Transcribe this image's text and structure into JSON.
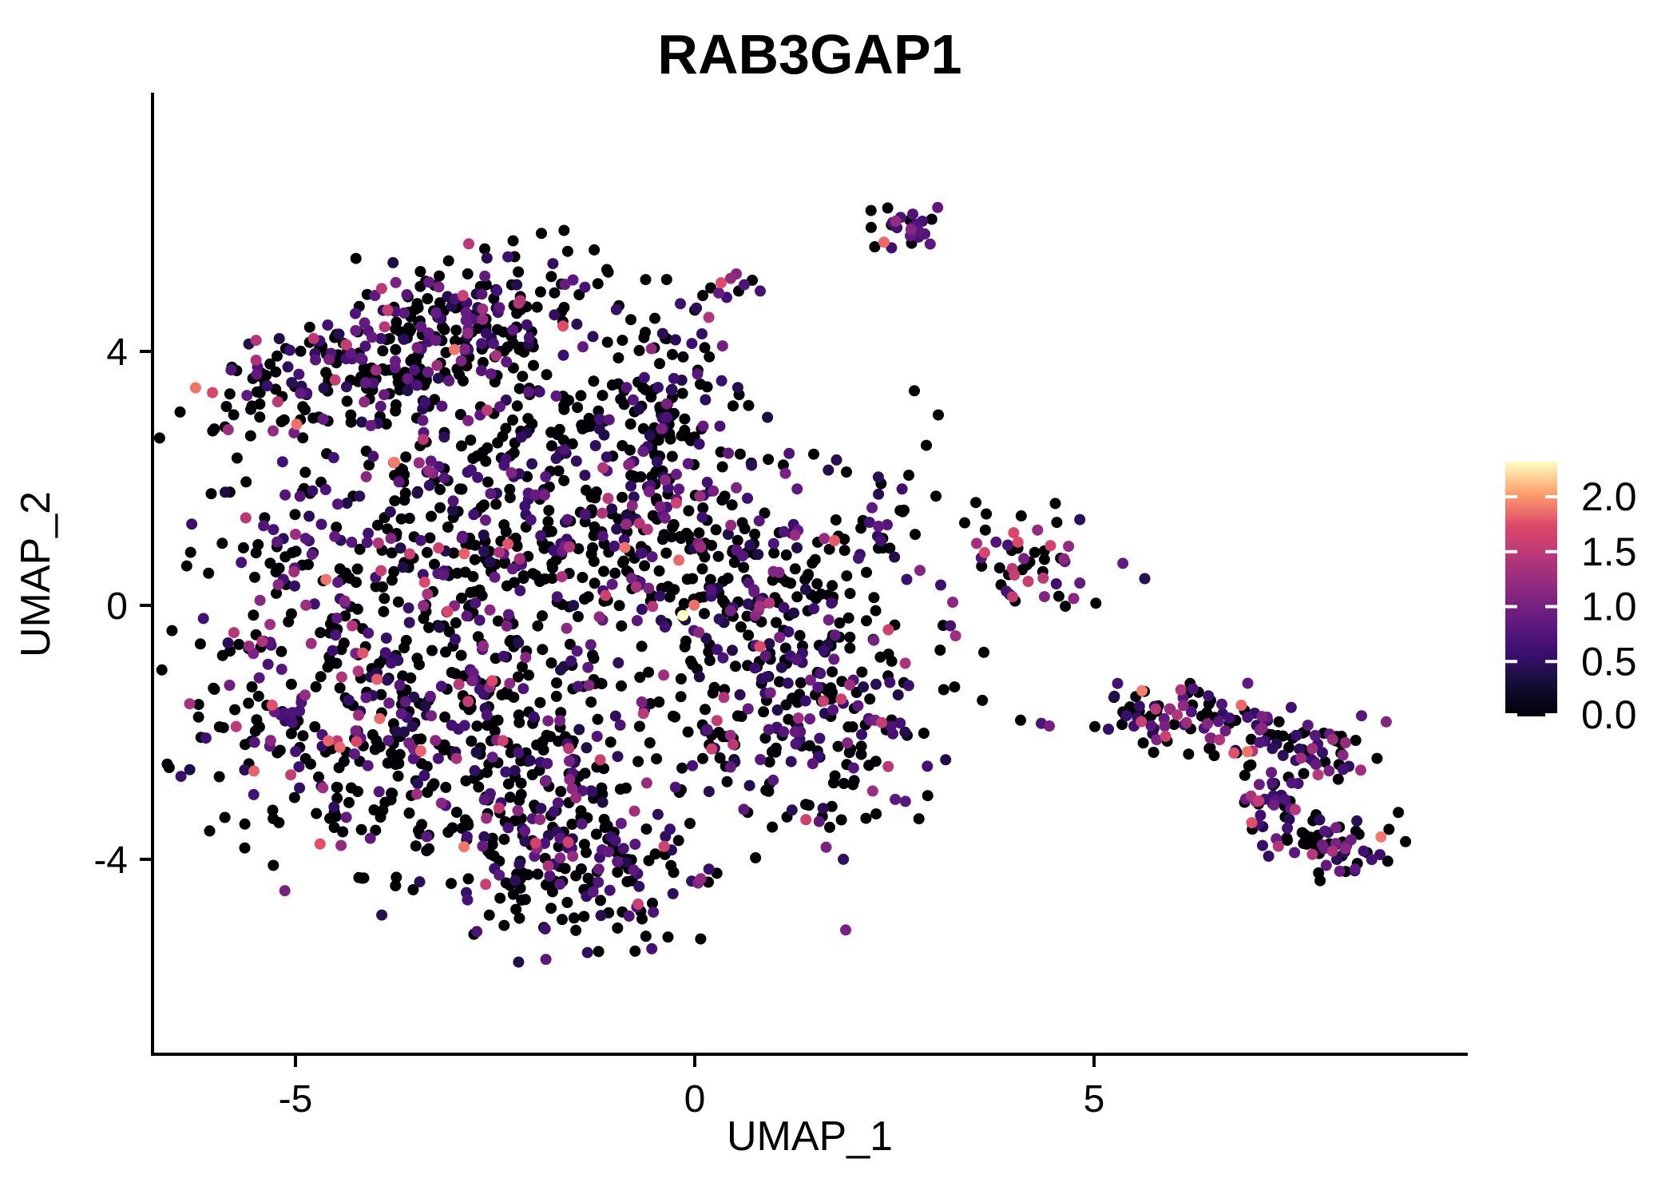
{
  "title": "RAB3GAP1",
  "axes": {
    "x_label": "UMAP_1",
    "y_label": "UMAP_2",
    "xlim": [
      -6.79,
      9.68
    ],
    "ylim": [
      -7.07,
      8.05
    ],
    "x_ticks": [
      {
        "value": -5,
        "label": "-5"
      },
      {
        "value": 0,
        "label": "0"
      },
      {
        "value": 5,
        "label": "5"
      }
    ],
    "y_ticks": [
      {
        "value": 4,
        "label": "4"
      },
      {
        "value": 0,
        "label": "0"
      },
      {
        "value": -4,
        "label": "-4"
      }
    ]
  },
  "legend": {
    "vmin": 0,
    "vmax": 2.32,
    "ticks": [
      {
        "value": 2.0,
        "label": "2.0"
      },
      {
        "value": 1.5,
        "label": "1.5"
      },
      {
        "value": 1.0,
        "label": "1.0"
      },
      {
        "value": 0.5,
        "label": "0.5"
      },
      {
        "value": 0.0,
        "label": "0.0"
      }
    ],
    "colormap": [
      [
        0.0,
        "#000004"
      ],
      [
        0.125,
        "#140E36"
      ],
      [
        0.25,
        "#3B0F70"
      ],
      [
        0.375,
        "#641A80"
      ],
      [
        0.5,
        "#8C2981"
      ],
      [
        0.625,
        "#B73779"
      ],
      [
        0.75,
        "#DE4968"
      ],
      [
        0.875,
        "#FE9F6D"
      ],
      [
        1.0,
        "#FCFDBF"
      ]
    ]
  },
  "chart_data": {
    "type": "scatter",
    "description": "UMAP feature plot of RAB3GAP1 expression; ~2500 cells in clusters, color = expression (magma scale 0-2.32, black = 0)",
    "seed": 1337,
    "point_radius": 7,
    "expr_profiles": {
      "main": {
        "p0": 0.6,
        "bands": [
          [
            0.35,
            0.9,
            0.72
          ],
          [
            0.95,
            1.3,
            0.16
          ],
          [
            1.35,
            1.65,
            0.08
          ],
          [
            1.7,
            1.95,
            0.04
          ]
        ]
      },
      "upper": {
        "p0": 0.58,
        "bands": [
          [
            0.35,
            0.9,
            0.72
          ],
          [
            0.95,
            1.3,
            0.16
          ],
          [
            1.35,
            1.65,
            0.08
          ],
          [
            1.7,
            1.95,
            0.04
          ]
        ]
      },
      "island": {
        "p0": 0.45,
        "bands": [
          [
            0.4,
            0.95,
            0.75
          ],
          [
            1.0,
            1.35,
            0.15
          ],
          [
            1.4,
            1.7,
            0.08
          ],
          [
            1.75,
            1.95,
            0.02
          ]
        ]
      },
      "colorful": {
        "p0": 0.4,
        "bands": [
          [
            0.4,
            0.95,
            0.45
          ],
          [
            1.0,
            1.4,
            0.25
          ],
          [
            1.45,
            1.75,
            0.18
          ],
          [
            1.8,
            2.0,
            0.12
          ]
        ]
      },
      "topF": {
        "p0": 0.5,
        "bands": [
          [
            0.6,
            0.9,
            0.9
          ],
          [
            1.0,
            1.3,
            0.1
          ]
        ]
      }
    },
    "clusters": [
      {
        "name": "upper-left-main",
        "kind": "gauss",
        "n": 250,
        "cx": -3.05,
        "cy": 4.35,
        "sx": 1.05,
        "sy": 0.55,
        "shear": 0.28,
        "profile": "upper"
      },
      {
        "name": "upper-left-west",
        "kind": "gauss",
        "n": 115,
        "cx": -4.55,
        "cy": 3.4,
        "sx": 0.8,
        "sy": 0.5,
        "shear": 0.2,
        "profile": "upper"
      },
      {
        "name": "upper-neck",
        "kind": "gauss",
        "n": 115,
        "cx": -2.0,
        "cy": 2.9,
        "sx": 0.85,
        "sy": 0.55,
        "shear": 0.0,
        "profile": "upper"
      },
      {
        "name": "upper-right-arm",
        "kind": "gauss",
        "n": 95,
        "cx": -0.2,
        "cy": 3.05,
        "sx": 0.5,
        "sy": 0.8,
        "shear": -0.4,
        "profile": "main"
      },
      {
        "name": "belt-west",
        "kind": "gauss",
        "n": 235,
        "cx": -3.5,
        "cy": 1.15,
        "sx": 1.45,
        "sy": 0.85,
        "shear": 0.0,
        "profile": "main"
      },
      {
        "name": "belt-east",
        "kind": "gauss",
        "n": 205,
        "cx": -1.55,
        "cy": 0.95,
        "sx": 1.15,
        "sy": 0.85,
        "shear": 0.0,
        "profile": "main"
      },
      {
        "name": "lower-left-lobe",
        "kind": "gauss",
        "n": 330,
        "cx": -4.25,
        "cy": -1.55,
        "sx": 1.25,
        "sy": 1.05,
        "shear": 0.0,
        "profile": "main"
      },
      {
        "name": "lower-mid-lobe",
        "kind": "gauss",
        "n": 300,
        "cx": -2.2,
        "cy": -2.6,
        "sx": 1.05,
        "sy": 1.05,
        "shear": 0.0,
        "profile": "main"
      },
      {
        "name": "bottom-tip",
        "kind": "gauss",
        "n": 125,
        "cx": -1.35,
        "cy": -4.25,
        "sx": 0.8,
        "sy": 0.5,
        "shear": 0.0,
        "profile": "main"
      },
      {
        "name": "right-lobe",
        "kind": "gauss",
        "n": 245,
        "cx": 1.45,
        "cy": -1.7,
        "sx": 0.85,
        "sy": 1.15,
        "shear": 0.0,
        "profile": "main"
      },
      {
        "name": "right-lobe-upper",
        "kind": "gauss",
        "n": 170,
        "cx": 0.55,
        "cy": 0.5,
        "sx": 0.8,
        "sy": 0.9,
        "shear": 0.0,
        "profile": "main"
      },
      {
        "name": "top-cluster",
        "kind": "gauss",
        "n": 20,
        "cx": 2.62,
        "cy": 5.9,
        "sx": 0.26,
        "sy": 0.24,
        "shear": 0.0,
        "profile": "topF"
      },
      {
        "name": "mid-right-cluster",
        "kind": "gauss",
        "n": 50,
        "cx": 4.25,
        "cy": 0.7,
        "sx": 0.5,
        "sy": 0.4,
        "shear": 0.0,
        "profile": "colorful"
      },
      {
        "name": "mid-right-arm",
        "kind": "gauss",
        "n": 20,
        "cx": 2.2,
        "cy": 1.2,
        "sx": 0.33,
        "sy": 0.38,
        "shear": 0.7,
        "profile": "main"
      },
      {
        "name": "island-band",
        "kind": "line",
        "n": 135,
        "x1": 5.55,
        "y1": -1.6,
        "x2": 8.35,
        "y2": -2.35,
        "jx": 0.18,
        "jy": 0.28,
        "profile": "island"
      },
      {
        "name": "island-hook",
        "kind": "line",
        "n": 58,
        "x1": 6.85,
        "y1": -2.55,
        "x2": 7.95,
        "y2": -4.1,
        "jx": 0.2,
        "jy": 0.2,
        "profile": "island"
      },
      {
        "name": "island-tip",
        "kind": "gauss",
        "n": 32,
        "cx": 8.25,
        "cy": -3.85,
        "sx": 0.3,
        "sy": 0.28,
        "shear": 0.0,
        "profile": "island"
      },
      {
        "name": "island-connector",
        "kind": "line",
        "n": 10,
        "x1": 5.2,
        "y1": -1.45,
        "x2": 5.7,
        "y2": -1.9,
        "jx": 0.12,
        "jy": 0.12,
        "profile": "main"
      }
    ],
    "chain_points": [
      [
        -0.95,
        4.72,
        0
      ],
      [
        -0.8,
        4.5,
        0
      ],
      [
        -0.62,
        4.3,
        0
      ],
      [
        -0.5,
        4.52,
        0
      ],
      [
        -0.35,
        4.2,
        0
      ],
      [
        -0.28,
        3.95,
        0
      ],
      [
        0.0,
        4.65,
        0
      ],
      [
        -0.18,
        4.75,
        0.6
      ],
      [
        0.1,
        4.88,
        0
      ],
      [
        0.2,
        5.0,
        0
      ],
      [
        0.33,
        5.08,
        1.75
      ],
      [
        0.45,
        5.15,
        1.2
      ],
      [
        0.52,
        5.22,
        1.1
      ],
      [
        0.62,
        5.05,
        0.7
      ],
      [
        0.55,
        4.95,
        0
      ],
      [
        0.4,
        4.85,
        0.6
      ],
      [
        0.72,
        5.12,
        0
      ],
      [
        0.82,
        4.95,
        0.65
      ],
      [
        0.3,
        4.92,
        0.9
      ]
    ],
    "outliers": [
      [
        3.62,
        -0.74,
        0
      ],
      [
        4.08,
        -1.81,
        0
      ],
      [
        4.34,
        -1.86,
        0.7
      ],
      [
        4.44,
        -1.9,
        1.0
      ],
      [
        5.01,
        -1.91,
        0
      ],
      [
        5.18,
        -1.95,
        0.55
      ],
      [
        2.82,
        0.55,
        1.1
      ],
      [
        3.08,
        0.32,
        0.6
      ],
      [
        3.23,
        0.05,
        1.15
      ],
      [
        3.38,
        1.3,
        0
      ],
      [
        3.52,
        1.62,
        0
      ],
      [
        3.02,
        1.72,
        0
      ],
      [
        2.62,
        1.5,
        0
      ],
      [
        2.75,
        3.38,
        0
      ],
      [
        3.05,
        3.0,
        0
      ],
      [
        2.9,
        2.52,
        0
      ],
      [
        2.68,
        2.05,
        0
      ],
      [
        5.25,
        -1.45,
        0
      ],
      [
        5.45,
        -1.6,
        0
      ],
      [
        5.6,
        -1.8,
        0
      ],
      [
        5.5,
        -1.9,
        0.6
      ],
      [
        1.9,
        2.1,
        0
      ],
      [
        2.3,
        0.9,
        0
      ]
    ],
    "specials": [
      [
        -0.15,
        -0.16,
        2.32
      ],
      [
        2.37,
        5.72,
        1.85
      ],
      [
        1.75,
        1.02,
        1.8
      ],
      [
        -1.65,
        4.4,
        1.75
      ],
      [
        2.72,
        5.95,
        0.75
      ],
      [
        2.8,
        5.9,
        0.8
      ],
      [
        2.78,
        6.0,
        0.7
      ],
      [
        2.88,
        5.85,
        0.75
      ],
      [
        2.85,
        6.05,
        0.65
      ],
      [
        2.7,
        5.82,
        0.85
      ]
    ]
  }
}
